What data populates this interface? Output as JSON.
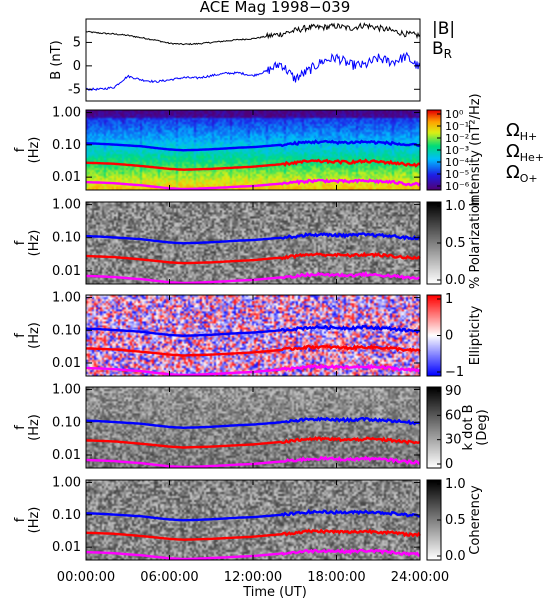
{
  "title": "ACE Mag 1998−039",
  "xaxis": {
    "label": "Time (UT)",
    "ticks": [
      "00:00:00",
      "06:00:00",
      "12:00:00",
      "18:00:00",
      "24:00:00"
    ],
    "range_hours": [
      0,
      24
    ]
  },
  "colors": {
    "B_total": "#000000",
    "B_R": "#0000ff",
    "gyro_H": "#0000ff",
    "gyro_He": "#ff0000",
    "gyro_O": "#ff00ff"
  },
  "chart_data": [
    {
      "type": "line",
      "id": "magnetic-field",
      "ylabel": "B (nT)",
      "ylim": [
        -7.5,
        10
      ],
      "yticks": [
        -5,
        0,
        5
      ],
      "x_hours": [
        0,
        1,
        2,
        3,
        4,
        5,
        6,
        7,
        8,
        9,
        10,
        11,
        12,
        13,
        14,
        15,
        16,
        17,
        18,
        19,
        20,
        21,
        22,
        23,
        24
      ],
      "series": [
        {
          "name": "|B|",
          "color": "#000000",
          "values": [
            7.3,
            7.0,
            6.8,
            6.5,
            6.0,
            5.5,
            4.8,
            4.6,
            4.7,
            5.0,
            5.3,
            5.6,
            5.8,
            6.3,
            6.8,
            7.5,
            8.2,
            8.2,
            8.5,
            8.0,
            8.7,
            8.1,
            7.5,
            6.8,
            6.5
          ]
        },
        {
          "name": "B_R",
          "color": "#0000ff",
          "values": [
            -5.0,
            -5.0,
            -4.6,
            -2.2,
            -3.0,
            -3.4,
            -3.0,
            -2.5,
            -2.6,
            -2.1,
            -1.6,
            -1.5,
            -2.1,
            -1.1,
            0.5,
            -2.8,
            -1.0,
            1.0,
            1.8,
            0.2,
            0.1,
            1.6,
            0.8,
            2.0,
            -0.5
          ]
        }
      ]
    },
    {
      "type": "heatmap",
      "id": "intensity",
      "ylabel": "f (Hz)",
      "yscale": "log",
      "ylim": [
        0.004,
        1.2
      ],
      "yticks": [
        "1.00",
        "0.10",
        "0.01"
      ],
      "colorbar": {
        "label": "Intensity (nT²/Hz)",
        "scale": "log",
        "ticks": [
          "10⁰",
          "10⁻¹",
          "10⁻²",
          "10⁻³",
          "10⁻⁴",
          "10⁻⁵",
          "10⁻⁶"
        ]
      },
      "overlay_legend": [
        {
          "label": "ΩH+",
          "main": "Ω",
          "sub": "H+",
          "color": "#0000ff"
        },
        {
          "label": "ΩHe+",
          "main": "Ω",
          "sub": "He+",
          "color": "#ff0000"
        },
        {
          "label": "ΩO+",
          "main": "Ω",
          "sub": "O+",
          "color": "#ff00ff"
        }
      ]
    },
    {
      "type": "heatmap",
      "id": "polarization",
      "ylabel": "f (Hz)",
      "yscale": "log",
      "ylim": [
        0.004,
        1.2
      ],
      "yticks": [
        "1.00",
        "0.10",
        "0.01"
      ],
      "colorbar": {
        "label": "% Polarization",
        "ticks": [
          "1.0",
          "0.5",
          "0.0"
        ]
      }
    },
    {
      "type": "heatmap",
      "id": "ellipticity",
      "ylabel": "f (Hz)",
      "yscale": "log",
      "ylim": [
        0.004,
        1.2
      ],
      "yticks": [
        "1.00",
        "0.10",
        "0.01"
      ],
      "colorbar": {
        "label": "Ellipticity",
        "ticks": [
          "1",
          "0",
          "−1"
        ]
      }
    },
    {
      "type": "heatmap",
      "id": "kdotb",
      "ylabel": "f (Hz)",
      "yscale": "log",
      "ylim": [
        0.004,
        1.2
      ],
      "yticks": [
        "1.00",
        "0.10",
        "0.01"
      ],
      "colorbar": {
        "label": "k dot B (Deg)",
        "label_lines": [
          "k dot B",
          "(Deg)"
        ],
        "ticks": [
          "90",
          "60",
          "30",
          "0"
        ]
      }
    },
    {
      "type": "heatmap",
      "id": "coherency",
      "ylabel": "f (Hz)",
      "yscale": "log",
      "ylim": [
        0.004,
        1.2
      ],
      "yticks": [
        "1.00",
        "0.10",
        "0.01"
      ],
      "colorbar": {
        "label": "Coherency",
        "ticks": [
          "1.0",
          "0.5",
          "0.0"
        ]
      }
    }
  ],
  "gyrofrequency_lines": {
    "x_hours": [
      0,
      1,
      2,
      3,
      4,
      5,
      6,
      7,
      8,
      9,
      10,
      11,
      12,
      13,
      14,
      15,
      16,
      17,
      18,
      19,
      20,
      21,
      22,
      23,
      24
    ],
    "H_plus_hz": [
      0.112,
      0.108,
      0.102,
      0.096,
      0.09,
      0.08,
      0.072,
      0.068,
      0.07,
      0.073,
      0.077,
      0.082,
      0.085,
      0.092,
      0.1,
      0.11,
      0.122,
      0.124,
      0.12,
      0.118,
      0.125,
      0.118,
      0.112,
      0.1,
      0.095
    ],
    "He_plus_hz": [
      0.028,
      0.027,
      0.026,
      0.024,
      0.022,
      0.02,
      0.018,
      0.017,
      0.0175,
      0.018,
      0.019,
      0.02,
      0.021,
      0.023,
      0.025,
      0.028,
      0.031,
      0.031,
      0.03,
      0.029,
      0.031,
      0.03,
      0.028,
      0.025,
      0.024
    ],
    "O_plus_hz": [
      0.007,
      0.0068,
      0.0065,
      0.006,
      0.0056,
      0.005,
      0.0045,
      0.0043,
      0.0044,
      0.0046,
      0.0048,
      0.0051,
      0.0053,
      0.0058,
      0.0063,
      0.0069,
      0.0076,
      0.0078,
      0.0075,
      0.0073,
      0.0078,
      0.0074,
      0.007,
      0.0062,
      0.006
    ]
  }
}
